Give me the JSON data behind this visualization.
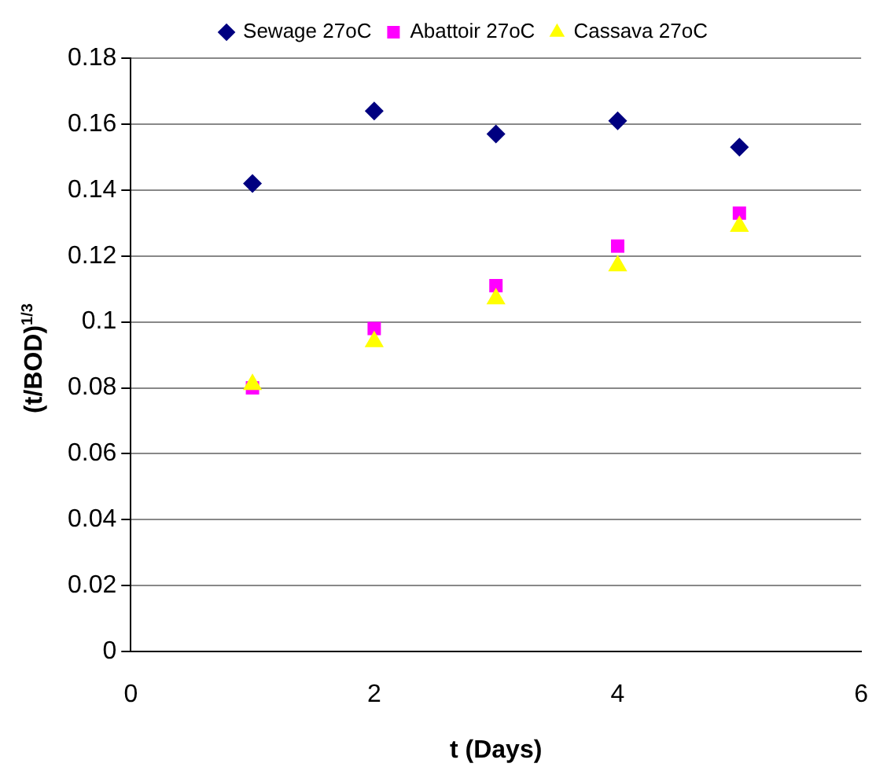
{
  "chart_data": {
    "type": "scatter",
    "xlabel": "t (Days)",
    "ylabel": "(t/BOD)$^{1/3}$",
    "x": [
      1,
      2,
      3,
      4,
      5
    ],
    "series": [
      {
        "name": "Sewage 27oC",
        "color": "#000080",
        "marker": "diamond",
        "values": [
          0.142,
          0.164,
          0.157,
          0.161,
          0.153
        ]
      },
      {
        "name": "Abattoir 27oC",
        "color": "#ff00ff",
        "marker": "square",
        "values": [
          0.08,
          0.098,
          0.111,
          0.123,
          0.133
        ]
      },
      {
        "name": "Cassava 27oC",
        "color": "#ffff00",
        "marker": "triangle",
        "values": [
          0.081,
          0.094,
          0.107,
          0.117,
          0.129
        ]
      }
    ],
    "xlim": [
      0,
      6
    ],
    "xticks": [
      0,
      2,
      4,
      6
    ],
    "ylim": [
      0,
      0.18
    ],
    "yticks": [
      0,
      0.02,
      0.04,
      0.06,
      0.08,
      0.1,
      0.12,
      0.14,
      0.16,
      0.18
    ],
    "grid": "y",
    "legend": "top"
  }
}
